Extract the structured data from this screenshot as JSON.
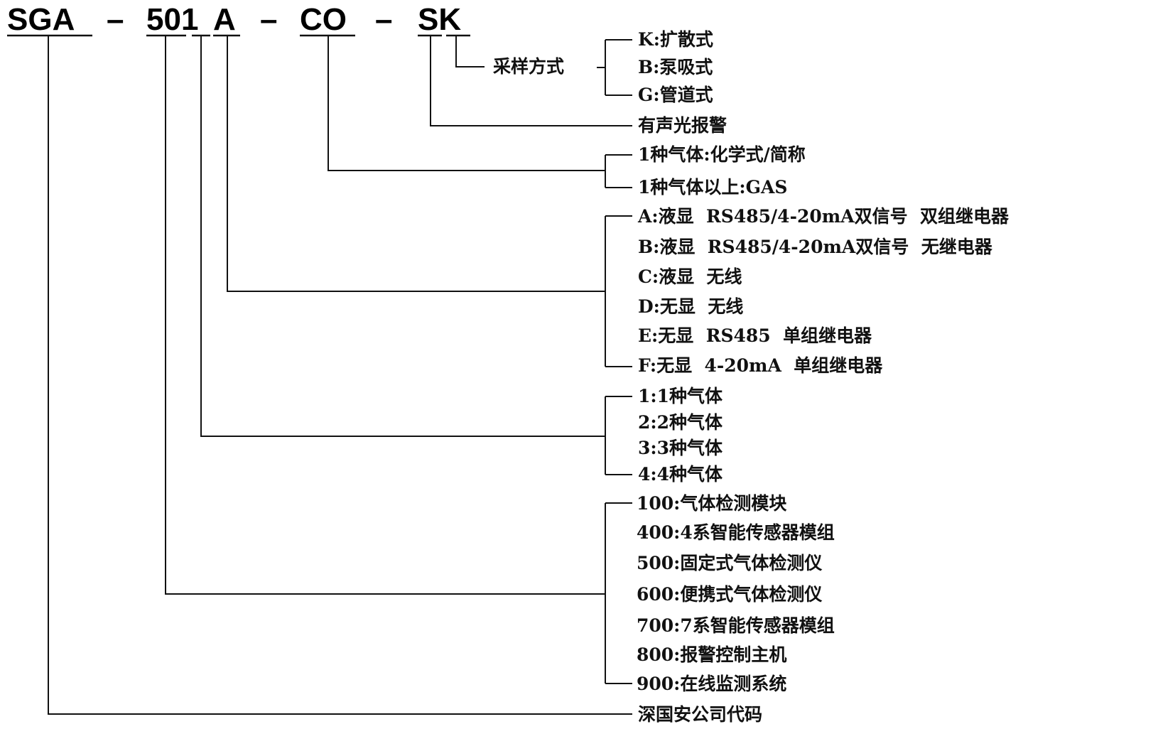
{
  "model_code": {
    "sga": "SGA",
    "num": "501",
    "a": "A",
    "co": "CO",
    "sk": "SK",
    "dash": "–"
  },
  "groups": {
    "sampling": {
      "title": "采样方式",
      "options": [
        "K:扩散式",
        "B:泵吸式",
        "G:管道式"
      ]
    },
    "alarm": {
      "label": "有声光报警"
    },
    "gas_name": {
      "options": [
        "1种气体:化学式/简称",
        "1种气体以上:GAS"
      ]
    },
    "output": {
      "options": [
        "A:液显  RS485/4-20mA双信号  双组继电器",
        "B:液显  RS485/4-20mA双信号  无继电器",
        "C:液显  无线",
        "D:无显  无线",
        "E:无显  RS485  单组继电器",
        "F:无显  4-20mA  单组继电器"
      ]
    },
    "gas_count": {
      "options": [
        "1:1种气体",
        "2:2种气体",
        "3:3种气体",
        "4:4种气体"
      ]
    },
    "product": {
      "options": [
        "100:气体检测模块",
        "400:4系智能传感器模组",
        "500:固定式气体检测仪",
        "600:便携式气体检测仪",
        "700:7系智能传感器模组",
        "800:报警控制主机",
        "900:在线监测系统"
      ]
    },
    "company": {
      "label": "深国安公司代码"
    }
  }
}
